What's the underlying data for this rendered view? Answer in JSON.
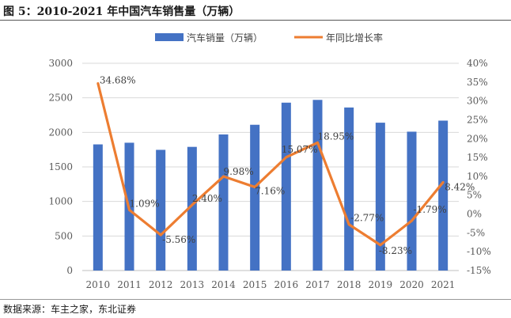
{
  "figure_title": "图 5：2010-2021 年中国汽车销售量（万辆）",
  "source": "数据来源：车主之家，东北证券",
  "colors": {
    "bar": "#4472C4",
    "line": "#ED7D31",
    "grid": "#d9d9d9",
    "axis_text": "#595959"
  },
  "chart_data": {
    "type": "bar",
    "title": "",
    "categories": [
      "2010",
      "2011",
      "2012",
      "2013",
      "2014",
      "2015",
      "2016",
      "2017",
      "2018",
      "2019",
      "2020",
      "2021"
    ],
    "series": [
      {
        "name": "汽车销量（万辆）",
        "type": "bar",
        "axis": "left",
        "values": [
          1826,
          1850,
          1747,
          1790,
          1970,
          2110,
          2430,
          2470,
          2360,
          2140,
          2010,
          2170
        ]
      },
      {
        "name": "年同比增长率",
        "type": "line",
        "axis": "right",
        "values": [
          34.68,
          1.09,
          -5.56,
          2.4,
          9.98,
          7.16,
          15.07,
          18.95,
          -2.77,
          -8.23,
          -1.79,
          8.42
        ],
        "labels": [
          "34.68%",
          "1.09%",
          "-5.56%",
          "2.40%",
          "9.98%",
          "7.16%",
          "15.07%",
          "18.95%",
          "-2.77%",
          "-8.23%",
          "-1.79%",
          "8.42%"
        ]
      }
    ],
    "y_left": {
      "min": 0,
      "max": 3000,
      "ticks": [
        "0",
        "500",
        "1000",
        "1500",
        "2000",
        "2500",
        "3000"
      ]
    },
    "y_right": {
      "min": -15,
      "max": 40,
      "ticks": [
        "-15%",
        "-10%",
        "-5%",
        "0%",
        "5%",
        "10%",
        "15%",
        "20%",
        "25%",
        "30%",
        "35%",
        "40%"
      ]
    },
    "legend_position": "top-center",
    "grid": true
  }
}
